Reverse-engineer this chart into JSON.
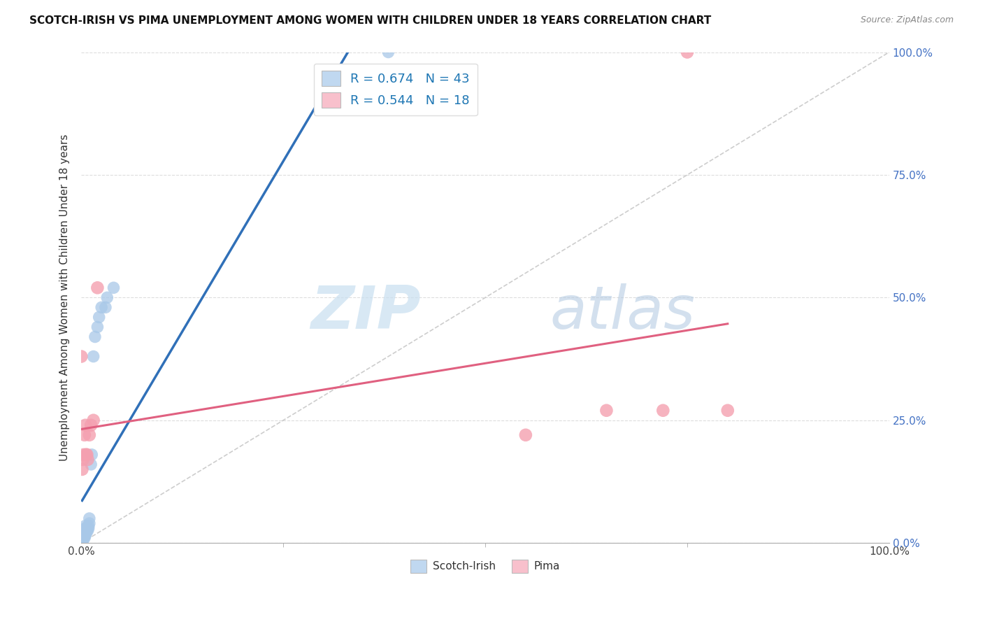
{
  "title": "SCOTCH-IRISH VS PIMA UNEMPLOYMENT AMONG WOMEN WITH CHILDREN UNDER 18 YEARS CORRELATION CHART",
  "source": "Source: ZipAtlas.com",
  "ylabel": "Unemployment Among Women with Children Under 18 years",
  "watermark_zip": "ZIP",
  "watermark_atlas": "atlas",
  "scotch_irish_R": 0.674,
  "scotch_irish_N": 43,
  "pima_R": 0.544,
  "pima_N": 18,
  "scotch_irish_color": "#a8c8e8",
  "scotch_irish_line_color": "#3070b8",
  "pima_color": "#f4a0b0",
  "pima_line_color": "#e06080",
  "diagonal_color": "#c8c8c8",
  "scotch_irish_x": [
    0.001,
    0.001,
    0.001,
    0.001,
    0.002,
    0.002,
    0.002,
    0.002,
    0.003,
    0.003,
    0.003,
    0.003,
    0.004,
    0.004,
    0.004,
    0.004,
    0.005,
    0.005,
    0.005,
    0.005,
    0.005,
    0.006,
    0.006,
    0.006,
    0.007,
    0.007,
    0.008,
    0.008,
    0.009,
    0.009,
    0.01,
    0.01,
    0.012,
    0.013,
    0.015,
    0.017,
    0.02,
    0.022,
    0.025,
    0.03,
    0.032,
    0.04,
    0.38
  ],
  "scotch_irish_y": [
    0.005,
    0.008,
    0.01,
    0.012,
    0.005,
    0.008,
    0.01,
    0.015,
    0.01,
    0.015,
    0.02,
    0.025,
    0.01,
    0.015,
    0.02,
    0.025,
    0.015,
    0.02,
    0.025,
    0.03,
    0.035,
    0.02,
    0.025,
    0.03,
    0.025,
    0.03,
    0.025,
    0.03,
    0.03,
    0.035,
    0.04,
    0.05,
    0.16,
    0.18,
    0.38,
    0.42,
    0.44,
    0.46,
    0.48,
    0.48,
    0.5,
    0.52,
    1.0
  ],
  "pima_x": [
    0.0,
    0.001,
    0.002,
    0.003,
    0.004,
    0.005,
    0.006,
    0.007,
    0.008,
    0.01,
    0.012,
    0.015,
    0.02,
    0.55,
    0.65,
    0.72,
    0.75,
    0.8
  ],
  "pima_y": [
    0.38,
    0.15,
    0.17,
    0.18,
    0.22,
    0.24,
    0.18,
    0.18,
    0.17,
    0.22,
    0.24,
    0.25,
    0.52,
    0.22,
    0.27,
    0.27,
    1.0,
    0.27
  ],
  "xlim": [
    0.0,
    1.0
  ],
  "ylim": [
    0.0,
    1.0
  ],
  "xticks_labeled": [
    0.0,
    1.0
  ],
  "xtick_labels_map": {
    "0.0": "0.0%",
    "1.0": "100.0%"
  },
  "xticks_minor": [
    0.25,
    0.5,
    0.75
  ],
  "yticks": [
    0.0,
    0.25,
    0.5,
    0.75,
    1.0
  ],
  "right_yticklabels": [
    "0.0%",
    "25.0%",
    "50.0%",
    "75.0%",
    "100.0%"
  ],
  "legend_scotch_color": "#c0d8f0",
  "legend_pima_color": "#f8c0cc",
  "legend_R_color": "#1f77b4",
  "background_color": "#ffffff",
  "grid_color": "#dddddd"
}
